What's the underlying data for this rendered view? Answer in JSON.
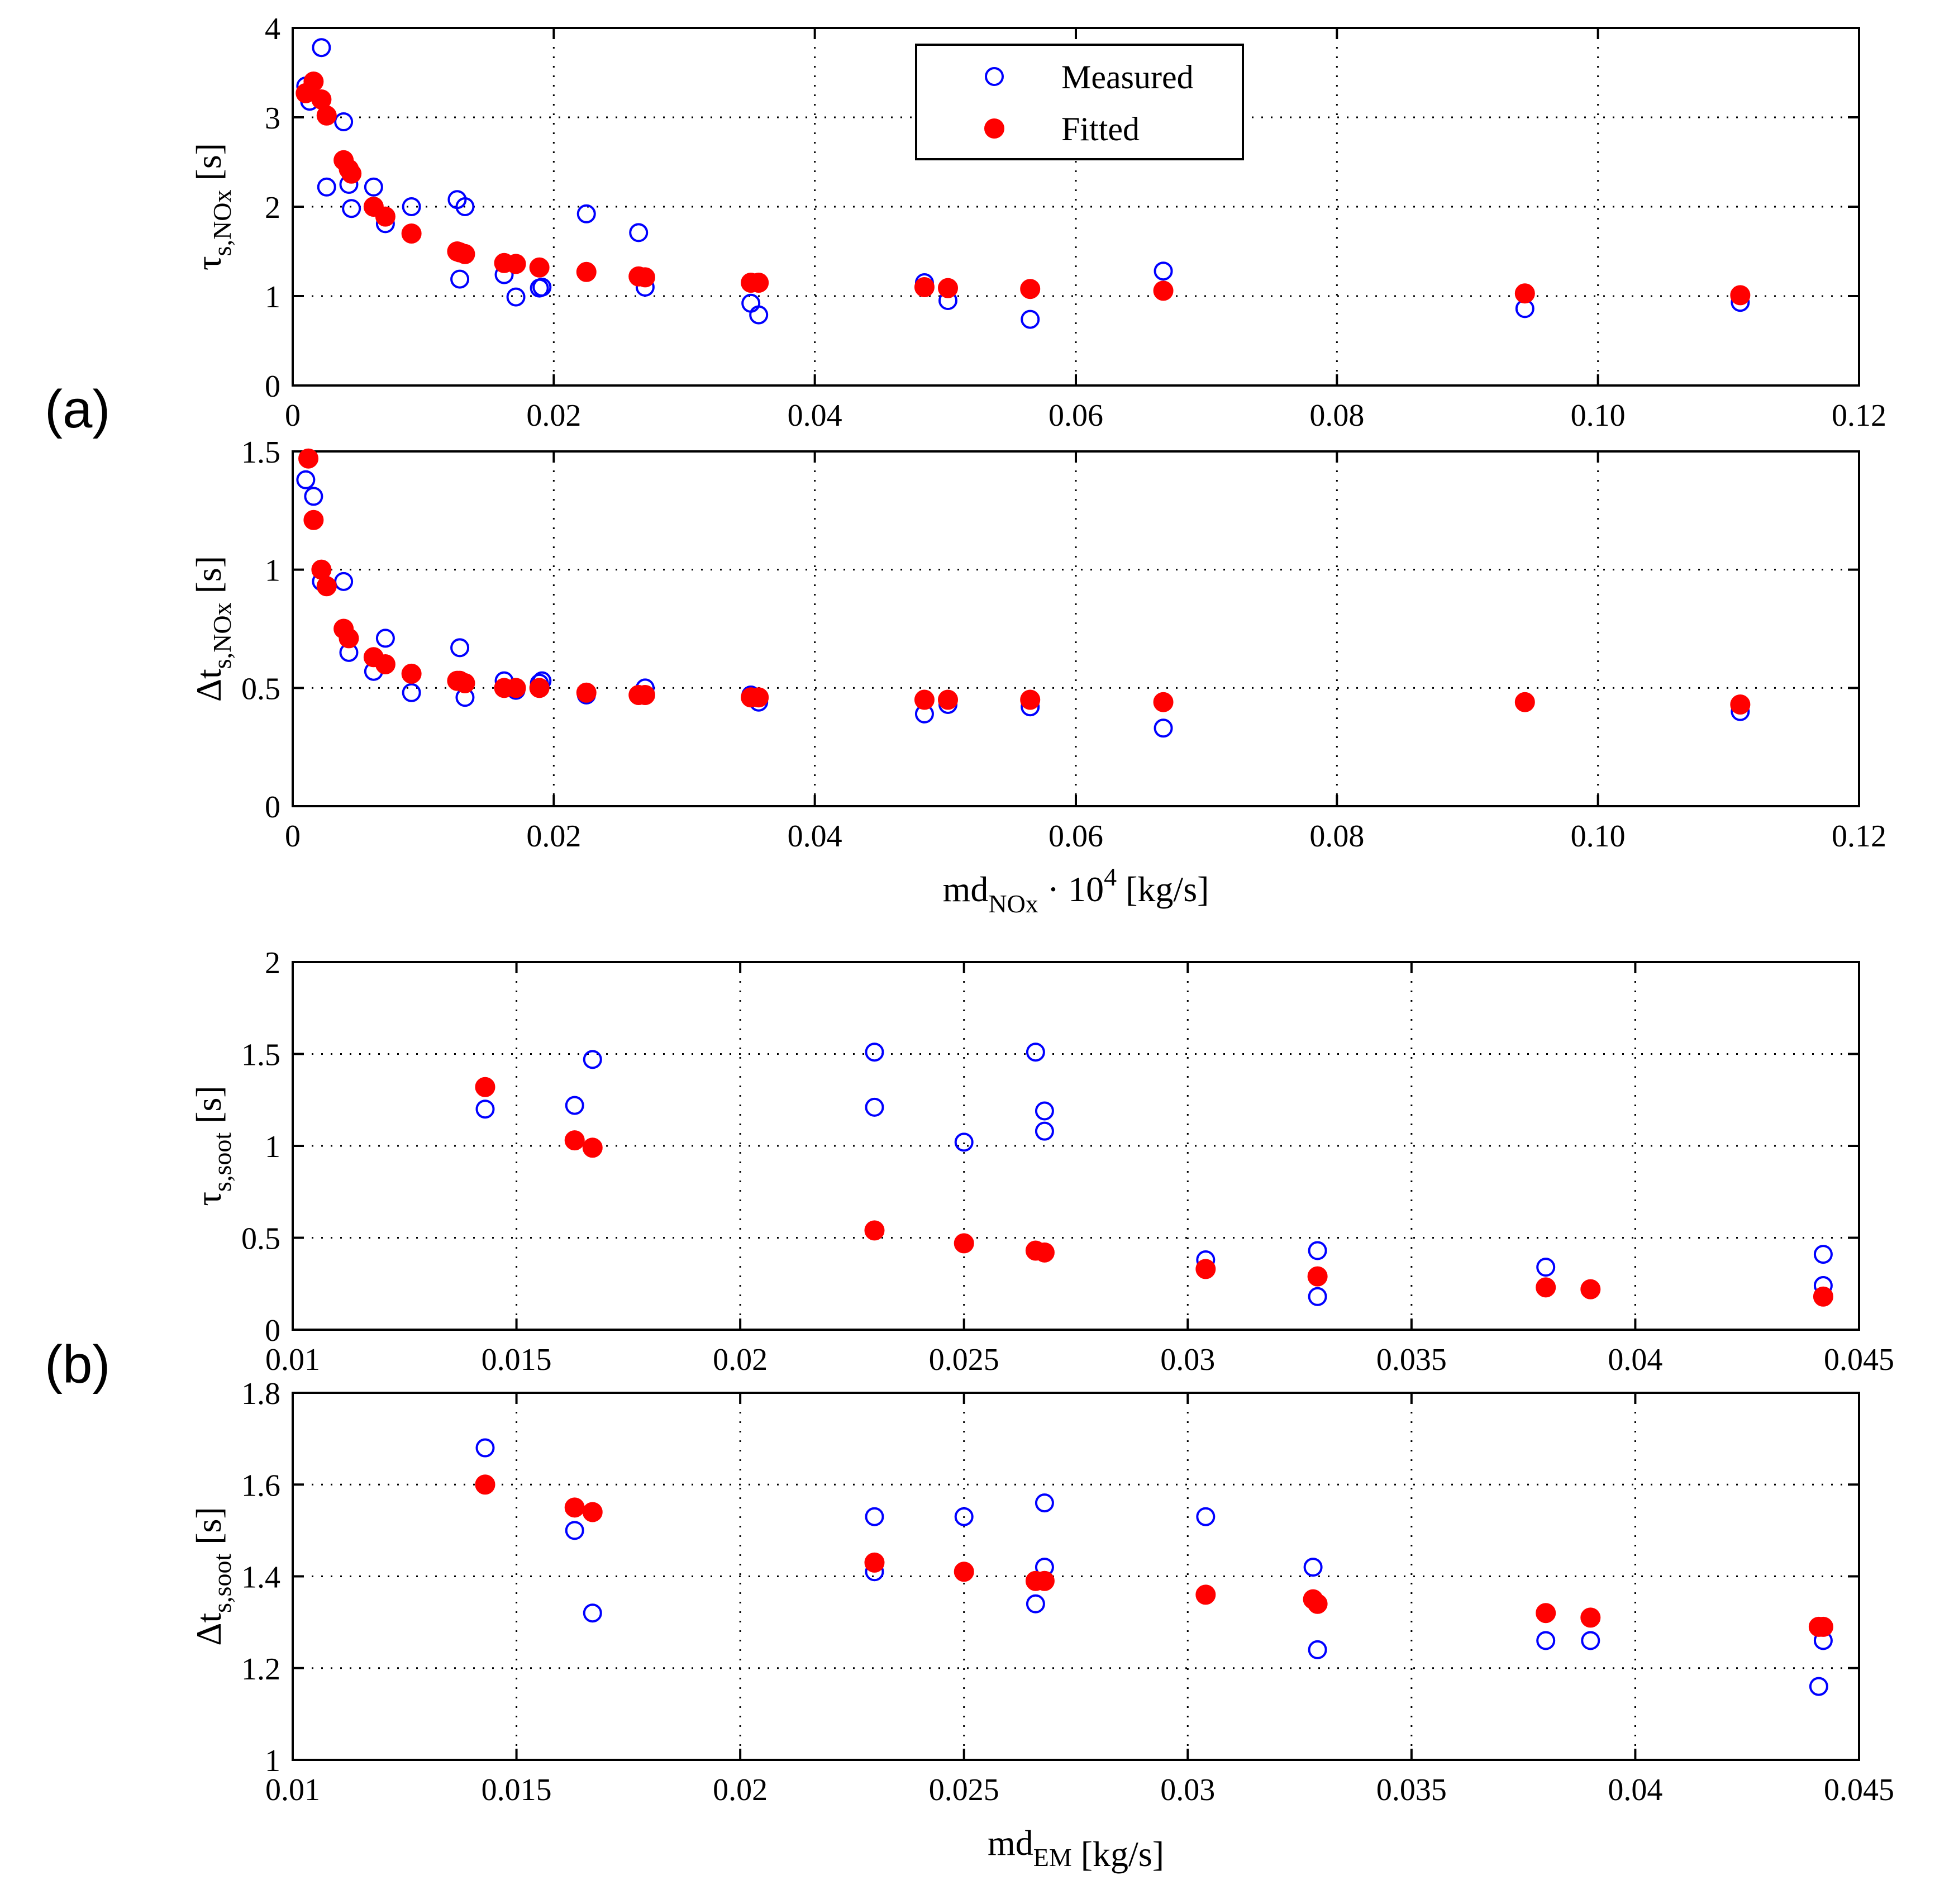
{
  "panel_labels": [
    "(a)",
    "(b)"
  ],
  "legend": {
    "measured": "Measured",
    "fitted": "Fitted"
  },
  "colors": {
    "measured": "#0000ff",
    "fitted": "#ff0000",
    "grid": "#000000",
    "axes": "#000000"
  },
  "chart_data": [
    {
      "type": "scatter",
      "panel": "(a)",
      "title": "",
      "xlabel_main": "",
      "xlabel_sub": "",
      "xlabel_sup": "",
      "xlabel_tail": "",
      "ylabel_main": "τ",
      "ylabel_sub": "s,NOx",
      "ylabel_tail": " [s]",
      "xlim": [
        0,
        0.12
      ],
      "ylim": [
        0,
        4
      ],
      "xticks": [
        0,
        0.02,
        0.04,
        0.06,
        0.08,
        0.1,
        0.12
      ],
      "xtick_labels": [
        "0",
        "0.02",
        "0.04",
        "0.06",
        "0.08",
        "0.10",
        "0.12"
      ],
      "yticks": [
        0,
        1,
        2,
        3,
        4
      ],
      "ytick_labels": [
        "0",
        "1",
        "2",
        "3",
        "4"
      ],
      "grid": true,
      "legend_position": "top-center",
      "show_legend": true,
      "series": [
        {
          "name": "Measured",
          "marker": "open-circle",
          "x": [
            0.001,
            0.0013,
            0.0022,
            0.0026,
            0.0039,
            0.0043,
            0.0045,
            0.0062,
            0.0071,
            0.0091,
            0.0126,
            0.0128,
            0.0132,
            0.0162,
            0.0171,
            0.0189,
            0.0191,
            0.0225,
            0.0265,
            0.027,
            0.0351,
            0.0357,
            0.0484,
            0.0502,
            0.0565,
            0.0667,
            0.0944,
            0.1109
          ],
          "y": [
            3.35,
            3.18,
            3.78,
            2.22,
            2.95,
            2.25,
            1.98,
            2.22,
            1.81,
            2.0,
            2.08,
            1.19,
            2.0,
            1.24,
            0.99,
            1.09,
            1.1,
            1.92,
            1.71,
            1.1,
            0.92,
            0.79,
            1.15,
            0.95,
            0.74,
            1.28,
            0.86,
            0.93
          ]
        },
        {
          "name": "Fitted",
          "marker": "filled-circle",
          "x": [
            0.001,
            0.0016,
            0.0022,
            0.0026,
            0.0039,
            0.0043,
            0.0045,
            0.0062,
            0.0071,
            0.0091,
            0.0126,
            0.0128,
            0.0132,
            0.0162,
            0.0171,
            0.0189,
            0.0225,
            0.0265,
            0.027,
            0.0351,
            0.0357,
            0.0484,
            0.0502,
            0.0565,
            0.0667,
            0.0944,
            0.1109
          ],
          "y": [
            3.27,
            3.4,
            3.2,
            3.02,
            2.52,
            2.42,
            2.37,
            2.0,
            1.89,
            1.7,
            1.5,
            1.49,
            1.47,
            1.37,
            1.36,
            1.32,
            1.27,
            1.22,
            1.21,
            1.15,
            1.15,
            1.1,
            1.09,
            1.08,
            1.06,
            1.03,
            1.01
          ]
        }
      ]
    },
    {
      "type": "scatter",
      "panel": "(a)",
      "title": "",
      "xlabel_main": "md",
      "xlabel_sub": "NOx",
      "xlabel_sup": "4",
      "xlabel_tail": " · 10",
      "xlabel_end": " [kg/s]",
      "ylabel_main": "Δt",
      "ylabel_sub": "s,NOx",
      "ylabel_tail": " [s]",
      "xlim": [
        0,
        0.12
      ],
      "ylim": [
        0,
        1.5
      ],
      "xticks": [
        0,
        0.02,
        0.04,
        0.06,
        0.08,
        0.1,
        0.12
      ],
      "xtick_labels": [
        "0",
        "0.02",
        "0.04",
        "0.06",
        "0.08",
        "0.10",
        "0.12"
      ],
      "yticks": [
        0,
        0.5,
        1,
        1.5
      ],
      "ytick_labels": [
        "0",
        "0.5",
        "1",
        "1.5"
      ],
      "grid": true,
      "show_legend": false,
      "series": [
        {
          "name": "Measured",
          "marker": "open-circle",
          "x": [
            0.001,
            0.0016,
            0.0022,
            0.0026,
            0.0039,
            0.0043,
            0.0062,
            0.0071,
            0.0091,
            0.0126,
            0.0128,
            0.0132,
            0.0162,
            0.0171,
            0.0189,
            0.0191,
            0.0225,
            0.0265,
            0.027,
            0.0351,
            0.0357,
            0.0484,
            0.0502,
            0.0565,
            0.0667,
            0.0944,
            0.1109
          ],
          "y": [
            1.38,
            1.31,
            0.95,
            0.93,
            0.95,
            0.65,
            0.57,
            0.71,
            0.48,
            0.53,
            0.67,
            0.46,
            0.53,
            0.49,
            0.52,
            0.53,
            0.47,
            0.47,
            0.5,
            0.47,
            0.44,
            0.39,
            0.43,
            0.42,
            0.33,
            0.44,
            0.4
          ]
        },
        {
          "name": "Fitted",
          "marker": "filled-circle",
          "x": [
            0.0012,
            0.0016,
            0.0022,
            0.0026,
            0.0039,
            0.0043,
            0.0062,
            0.0071,
            0.0091,
            0.0126,
            0.0128,
            0.0132,
            0.0162,
            0.0171,
            0.0189,
            0.0225,
            0.0265,
            0.027,
            0.0351,
            0.0357,
            0.0484,
            0.0502,
            0.0565,
            0.0667,
            0.0944,
            0.1109
          ],
          "y": [
            1.47,
            1.21,
            1.0,
            0.93,
            0.75,
            0.71,
            0.63,
            0.6,
            0.56,
            0.53,
            0.53,
            0.52,
            0.5,
            0.5,
            0.5,
            0.48,
            0.47,
            0.47,
            0.46,
            0.46,
            0.45,
            0.45,
            0.45,
            0.44,
            0.44,
            0.43
          ]
        }
      ]
    },
    {
      "type": "scatter",
      "panel": "(b)",
      "title": "",
      "xlabel_main": "",
      "xlabel_sub": "",
      "xlabel_sup": "",
      "xlabel_tail": "",
      "ylabel_main": "τ",
      "ylabel_sub": "s,soot",
      "ylabel_tail": " [s]",
      "xlim": [
        0.01,
        0.045
      ],
      "ylim": [
        0,
        2
      ],
      "xticks": [
        0.01,
        0.015,
        0.02,
        0.025,
        0.03,
        0.035,
        0.04,
        0.045
      ],
      "xtick_labels": [
        "0.01",
        "0.015",
        "0.02",
        "0.025",
        "0.03",
        "0.035",
        "0.04",
        "0.045"
      ],
      "yticks": [
        0,
        0.5,
        1,
        1.5,
        2
      ],
      "ytick_labels": [
        "0",
        "0.5",
        "1",
        "1.5",
        "2"
      ],
      "grid": true,
      "show_legend": false,
      "series": [
        {
          "name": "Measured",
          "marker": "open-circle",
          "x": [
            0.0143,
            0.0163,
            0.0167,
            0.023,
            0.023,
            0.025,
            0.0266,
            0.0268,
            0.0268,
            0.0304,
            0.0329,
            0.0329,
            0.038,
            0.0442,
            0.0442
          ],
          "y": [
            1.2,
            1.22,
            1.47,
            1.51,
            1.21,
            1.02,
            1.51,
            1.08,
            1.19,
            0.38,
            0.43,
            0.18,
            0.34,
            0.41,
            0.24
          ]
        },
        {
          "name": "Fitted",
          "marker": "filled-circle",
          "x": [
            0.0143,
            0.0163,
            0.0167,
            0.023,
            0.025,
            0.0266,
            0.0268,
            0.0304,
            0.0329,
            0.038,
            0.039,
            0.0442
          ],
          "y": [
            1.32,
            1.03,
            0.99,
            0.54,
            0.47,
            0.43,
            0.42,
            0.33,
            0.29,
            0.23,
            0.22,
            0.18
          ]
        }
      ]
    },
    {
      "type": "scatter",
      "panel": "(b)",
      "title": "",
      "xlabel_main": "md",
      "xlabel_sub": "EM",
      "xlabel_sup": "",
      "xlabel_tail": "",
      "xlabel_end": " [kg/s]",
      "ylabel_main": "Δt",
      "ylabel_sub": "s,soot",
      "ylabel_tail": " [s]",
      "xlim": [
        0.01,
        0.045
      ],
      "ylim": [
        1,
        1.8
      ],
      "xticks": [
        0.01,
        0.015,
        0.02,
        0.025,
        0.03,
        0.035,
        0.04,
        0.045
      ],
      "xtick_labels": [
        "0.01",
        "0.015",
        "0.02",
        "0.025",
        "0.03",
        "0.035",
        "0.04",
        "0.045"
      ],
      "yticks": [
        1,
        1.2,
        1.4,
        1.6,
        1.8
      ],
      "ytick_labels": [
        "1",
        "1.2",
        "1.4",
        "1.6",
        "1.8"
      ],
      "grid": true,
      "show_legend": false,
      "series": [
        {
          "name": "Measured",
          "marker": "open-circle",
          "x": [
            0.0143,
            0.0163,
            0.0167,
            0.023,
            0.023,
            0.025,
            0.0266,
            0.0268,
            0.0268,
            0.0304,
            0.0328,
            0.0329,
            0.038,
            0.039,
            0.0441,
            0.0442
          ],
          "y": [
            1.68,
            1.5,
            1.32,
            1.53,
            1.41,
            1.53,
            1.34,
            1.56,
            1.42,
            1.53,
            1.42,
            1.24,
            1.26,
            1.26,
            1.16,
            1.26
          ]
        },
        {
          "name": "Fitted",
          "marker": "filled-circle",
          "x": [
            0.0143,
            0.0163,
            0.0167,
            0.023,
            0.025,
            0.0266,
            0.0268,
            0.0304,
            0.0328,
            0.0329,
            0.038,
            0.039,
            0.0441,
            0.0442
          ],
          "y": [
            1.6,
            1.55,
            1.54,
            1.43,
            1.41,
            1.39,
            1.39,
            1.36,
            1.35,
            1.34,
            1.32,
            1.31,
            1.29,
            1.29
          ]
        }
      ]
    }
  ]
}
